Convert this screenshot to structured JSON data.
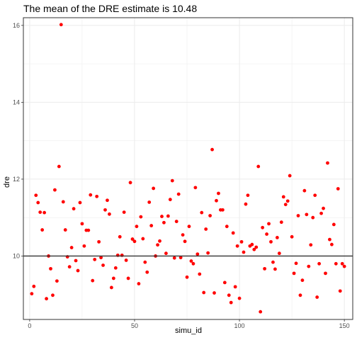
{
  "chart_data": {
    "type": "scatter",
    "title": "The mean of the DRE estimate is  10.48",
    "xlabel": "simu_id",
    "ylabel": "dre",
    "xlim": [
      -3,
      154
    ],
    "ylim": [
      8.35,
      16.2
    ],
    "xticks": [
      0,
      50,
      100,
      150
    ],
    "yticks": [
      10,
      12,
      14,
      16
    ],
    "grid": true,
    "hline": 10,
    "colors": {
      "point": "#ff0000",
      "hline": "#333333",
      "grid": "#ebebeb",
      "border": "#333333"
    },
    "points": [
      [
        1,
        9.02
      ],
      [
        2,
        9.21
      ],
      [
        3,
        11.58
      ],
      [
        4,
        11.39
      ],
      [
        5,
        11.14
      ],
      [
        6,
        10.68
      ],
      [
        7,
        11.13
      ],
      [
        8,
        8.89
      ],
      [
        9,
        10.0
      ],
      [
        10,
        9.67
      ],
      [
        11,
        8.98
      ],
      [
        12,
        11.72
      ],
      [
        13,
        9.35
      ],
      [
        14,
        12.33
      ],
      [
        15,
        16.02
      ],
      [
        16,
        11.41
      ],
      [
        17,
        10.68
      ],
      [
        18,
        9.98
      ],
      [
        19,
        9.72
      ],
      [
        20,
        10.22
      ],
      [
        21,
        11.23
      ],
      [
        22,
        9.88
      ],
      [
        23,
        9.62
      ],
      [
        24,
        11.39
      ],
      [
        25,
        10.84
      ],
      [
        26,
        10.26
      ],
      [
        27,
        10.67
      ],
      [
        28,
        10.67
      ],
      [
        29,
        11.59
      ],
      [
        30,
        9.36
      ],
      [
        31,
        9.91
      ],
      [
        32,
        11.55
      ],
      [
        33,
        10.37
      ],
      [
        34,
        9.96
      ],
      [
        35,
        9.76
      ],
      [
        36,
        11.2
      ],
      [
        37,
        11.45
      ],
      [
        38,
        11.09
      ],
      [
        39,
        9.18
      ],
      [
        40,
        9.42
      ],
      [
        41,
        9.69
      ],
      [
        42,
        10.02
      ],
      [
        43,
        10.5
      ],
      [
        44,
        10.02
      ],
      [
        45,
        11.14
      ],
      [
        46,
        9.89
      ],
      [
        47,
        9.42
      ],
      [
        48,
        11.91
      ],
      [
        49,
        10.44
      ],
      [
        50,
        10.38
      ],
      [
        51,
        10.77
      ],
      [
        52,
        9.28
      ],
      [
        53,
        11.02
      ],
      [
        54,
        10.45
      ],
      [
        55,
        9.84
      ],
      [
        56,
        9.58
      ],
      [
        57,
        11.4
      ],
      [
        58,
        10.79
      ],
      [
        59,
        11.76
      ],
      [
        60,
        10.0
      ],
      [
        61,
        10.29
      ],
      [
        62,
        10.39
      ],
      [
        63,
        11.03
      ],
      [
        64,
        10.87
      ],
      [
        65,
        10.07
      ],
      [
        66,
        11.04
      ],
      [
        67,
        11.47
      ],
      [
        68,
        11.96
      ],
      [
        69,
        9.95
      ],
      [
        70,
        10.9
      ],
      [
        71,
        11.61
      ],
      [
        72,
        9.96
      ],
      [
        73,
        10.55
      ],
      [
        74,
        10.38
      ],
      [
        75,
        9.45
      ],
      [
        76,
        10.77
      ],
      [
        77,
        9.87
      ],
      [
        78,
        9.8
      ],
      [
        79,
        11.78
      ],
      [
        80,
        10.05
      ],
      [
        81,
        9.53
      ],
      [
        82,
        11.13
      ],
      [
        83,
        9.05
      ],
      [
        84,
        10.7
      ],
      [
        85,
        10.08
      ],
      [
        86,
        11.05
      ],
      [
        87,
        12.77
      ],
      [
        88,
        9.04
      ],
      [
        89,
        11.44
      ],
      [
        90,
        11.63
      ],
      [
        91,
        11.2
      ],
      [
        92,
        11.2
      ],
      [
        93,
        9.31
      ],
      [
        94,
        10.77
      ],
      [
        95,
        8.98
      ],
      [
        96,
        8.79
      ],
      [
        97,
        10.6
      ],
      [
        98,
        9.2
      ],
      [
        99,
        10.26
      ],
      [
        100,
        8.9
      ],
      [
        101,
        10.37
      ],
      [
        102,
        10.1
      ],
      [
        103,
        11.35
      ],
      [
        104,
        11.58
      ],
      [
        105,
        10.26
      ],
      [
        106,
        10.3
      ],
      [
        107,
        10.17
      ],
      [
        108,
        10.23
      ],
      [
        109,
        12.33
      ],
      [
        110,
        8.55
      ],
      [
        111,
        10.74
      ],
      [
        112,
        9.67
      ],
      [
        113,
        10.57
      ],
      [
        114,
        10.84
      ],
      [
        115,
        10.37
      ],
      [
        116,
        9.84
      ],
      [
        117,
        9.66
      ],
      [
        118,
        10.48
      ],
      [
        119,
        10.07
      ],
      [
        120,
        10.88
      ],
      [
        121,
        11.54
      ],
      [
        122,
        11.34
      ],
      [
        123,
        11.43
      ],
      [
        124,
        12.09
      ],
      [
        125,
        10.5
      ],
      [
        126,
        9.55
      ],
      [
        127,
        9.81
      ],
      [
        128,
        11.05
      ],
      [
        129,
        8.98
      ],
      [
        130,
        9.37
      ],
      [
        131,
        11.7
      ],
      [
        132,
        11.08
      ],
      [
        133,
        9.73
      ],
      [
        134,
        10.29
      ],
      [
        135,
        11.0
      ],
      [
        136,
        11.58
      ],
      [
        137,
        8.93
      ],
      [
        138,
        9.8
      ],
      [
        139,
        11.11
      ],
      [
        140,
        11.24
      ],
      [
        141,
        9.55
      ],
      [
        142,
        12.42
      ],
      [
        143,
        10.43
      ],
      [
        144,
        10.3
      ],
      [
        145,
        10.82
      ],
      [
        146,
        9.8
      ],
      [
        147,
        11.75
      ],
      [
        148,
        9.09
      ],
      [
        149,
        9.8
      ],
      [
        150,
        9.73
      ]
    ]
  }
}
